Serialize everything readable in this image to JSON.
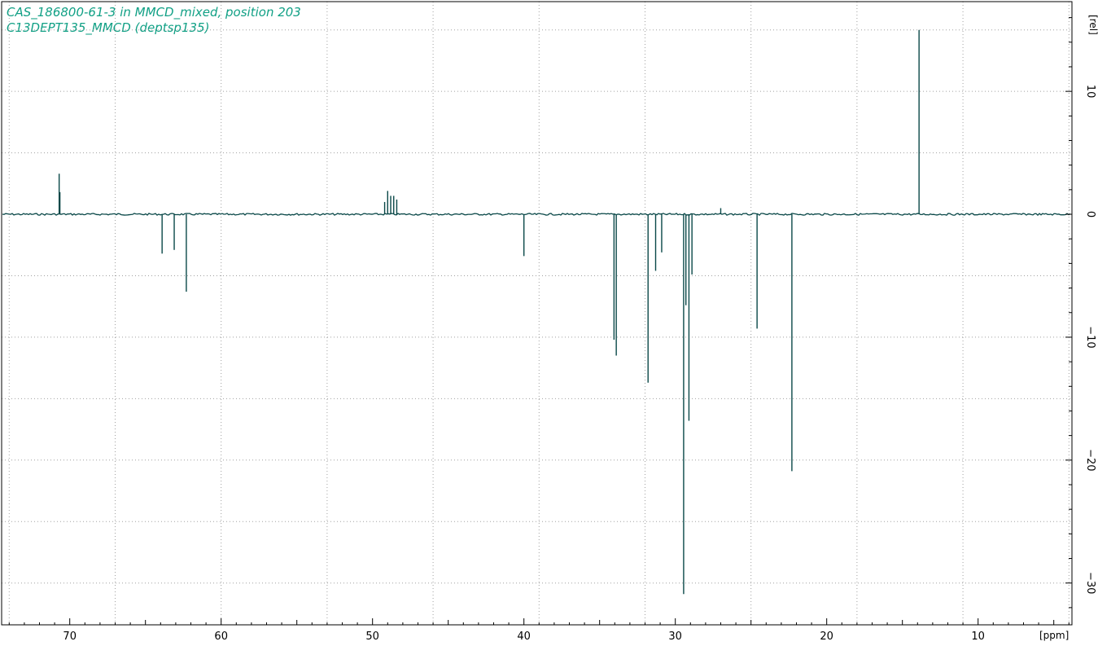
{
  "chart_data": {
    "type": "line",
    "title_lines": [
      "CAS_186800-61-3 in MMCD_mixed, position 203",
      "C13DEPT135_MMCD (deptsp135)"
    ],
    "xlabel": "[ppm]",
    "ylabel": "[rel]",
    "x_reversed": true,
    "xlim": [
      74.5,
      3.8
    ],
    "ylim": [
      -33.4,
      17.3
    ],
    "x_ticks": [
      70,
      60,
      50,
      40,
      30,
      20,
      10
    ],
    "y_ticks": [
      10,
      0,
      -10,
      -20,
      -30
    ],
    "y_tick_labels": [
      "10",
      "0",
      "−10",
      "−20",
      "−30"
    ],
    "grid": true,
    "baseline": 0,
    "series": [
      {
        "peaks": [
          {
            "ppm": 70.7,
            "value": 3.3
          },
          {
            "ppm": 70.65,
            "value": 1.8
          },
          {
            "ppm": 63.9,
            "value": -3.2
          },
          {
            "ppm": 63.1,
            "value": -2.9
          },
          {
            "ppm": 62.3,
            "value": -6.3
          },
          {
            "ppm": 49.2,
            "value": 1.0
          },
          {
            "ppm": 49.0,
            "value": 1.9
          },
          {
            "ppm": 48.8,
            "value": 1.5
          },
          {
            "ppm": 48.6,
            "value": 1.5
          },
          {
            "ppm": 48.4,
            "value": 1.2
          },
          {
            "ppm": 40.0,
            "value": -3.4
          },
          {
            "ppm": 34.05,
            "value": -10.2
          },
          {
            "ppm": 33.9,
            "value": -11.5
          },
          {
            "ppm": 31.8,
            "value": -13.7
          },
          {
            "ppm": 31.3,
            "value": -4.6
          },
          {
            "ppm": 30.9,
            "value": -3.1
          },
          {
            "ppm": 29.45,
            "value": -30.9
          },
          {
            "ppm": 29.3,
            "value": -7.4
          },
          {
            "ppm": 29.1,
            "value": -16.8
          },
          {
            "ppm": 28.9,
            "value": -4.9
          },
          {
            "ppm": 27.0,
            "value": 0.5
          },
          {
            "ppm": 24.6,
            "value": -9.3
          },
          {
            "ppm": 22.3,
            "value": -20.9
          },
          {
            "ppm": 13.9,
            "value": 15.0
          }
        ]
      }
    ]
  },
  "colors": {
    "title": "#11a085",
    "trace": "#0a4848",
    "grid": "#a0a0a0",
    "frame": "#000000"
  }
}
